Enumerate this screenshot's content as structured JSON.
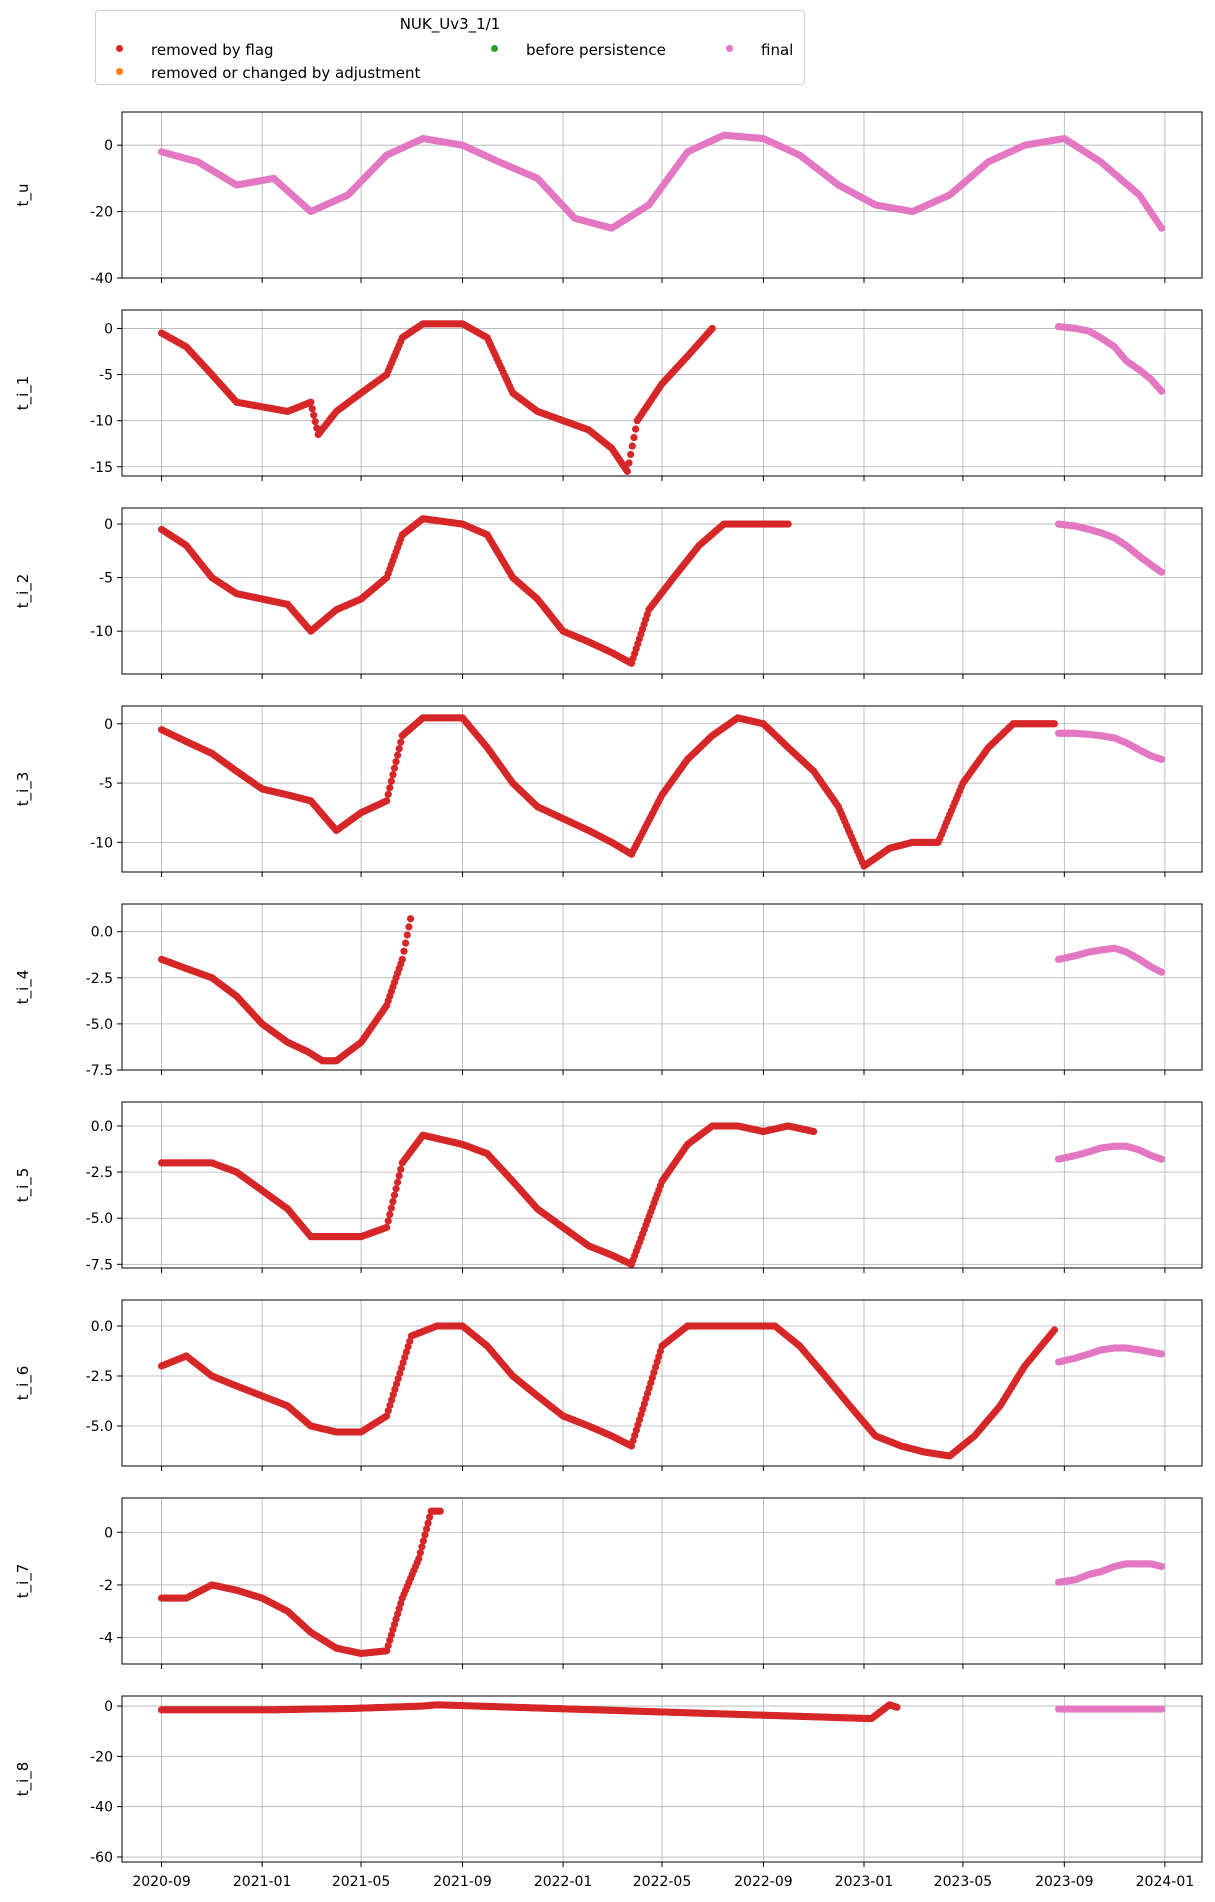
{
  "legend": {
    "title": "NUK_Uv3_1/1",
    "items": [
      {
        "label": "removed by flag",
        "color": "#d62728"
      },
      {
        "label": "removed or changed by adjustment",
        "color": "#ff7f0e"
      },
      {
        "label": "before persistence",
        "color": "#2ca02c"
      },
      {
        "label": "final",
        "color": "#e377c2"
      }
    ]
  },
  "chart_data": [
    {
      "type": "scatter",
      "ylabel": "t_u",
      "ylim": [
        -40,
        10
      ],
      "yticks": [
        0,
        -20,
        -40
      ],
      "grid": true,
      "series": [
        {
          "name": "final",
          "color": "#e377c2",
          "x": [
            "2020-09-01",
            "2020-10-15",
            "2020-12-01",
            "2021-01-15",
            "2021-03-01",
            "2021-04-15",
            "2021-06-01",
            "2021-07-15",
            "2021-09-01",
            "2021-10-15",
            "2021-12-01",
            "2022-01-15",
            "2022-03-01",
            "2022-04-15",
            "2022-06-01",
            "2022-07-15",
            "2022-09-01",
            "2022-10-15",
            "2022-12-01",
            "2023-01-15",
            "2023-03-01",
            "2023-04-15",
            "2023-06-01",
            "2023-07-15",
            "2023-09-01",
            "2023-10-15",
            "2023-12-01",
            "2023-12-28"
          ],
          "y": [
            -2,
            -5,
            -12,
            -10,
            -20,
            -15,
            -3,
            2,
            0,
            -5,
            -10,
            -22,
            -25,
            -18,
            -2,
            3,
            2,
            -3,
            -12,
            -18,
            -20,
            -15,
            -5,
            0,
            2,
            -5,
            -15,
            -25
          ]
        }
      ]
    },
    {
      "type": "scatter",
      "ylabel": "t_i_1",
      "ylim": [
        -16,
        2
      ],
      "yticks": [
        0,
        -5,
        -10,
        -15
      ],
      "grid": true,
      "series": [
        {
          "name": "removed by flag",
          "color": "#d62728",
          "x": [
            "2020-09-01",
            "2020-10-01",
            "2020-11-01",
            "2020-12-01",
            "2021-01-01",
            "2021-02-01",
            "2021-03-01",
            "2021-03-10",
            "2021-04-01",
            "2021-05-01",
            "2021-06-01",
            "2021-06-20",
            "2021-07-15",
            "2021-09-01",
            "2021-10-01",
            "2021-11-01",
            "2021-12-01",
            "2022-01-01",
            "2022-02-01",
            "2022-03-01",
            "2022-03-20",
            "2022-04-01",
            "2022-05-01",
            "2022-06-01",
            "2022-07-01"
          ],
          "y": [
            -0.5,
            -2,
            -5,
            -8,
            -8.5,
            -9,
            -8,
            -11.5,
            -9,
            -7,
            -5,
            -1,
            0.5,
            0.5,
            -1,
            -7,
            -9,
            -10,
            -11,
            -13,
            -15.5,
            -10,
            -6,
            -3,
            0
          ]
        },
        {
          "name": "final",
          "color": "#e377c2",
          "x": [
            "2023-08-25",
            "2023-09-15",
            "2023-10-01",
            "2023-10-15",
            "2023-11-01",
            "2023-11-15",
            "2023-12-01",
            "2023-12-15",
            "2023-12-28"
          ],
          "y": [
            0.2,
            0,
            -0.3,
            -1,
            -2,
            -3.5,
            -4.5,
            -5.5,
            -6.8
          ]
        }
      ]
    },
    {
      "type": "scatter",
      "ylabel": "t_i_2",
      "ylim": [
        -14,
        1.5
      ],
      "yticks": [
        0,
        -5,
        -10
      ],
      "grid": true,
      "series": [
        {
          "name": "removed by flag",
          "color": "#d62728",
          "x": [
            "2020-09-01",
            "2020-10-01",
            "2020-11-01",
            "2020-12-01",
            "2021-01-01",
            "2021-02-01",
            "2021-03-01",
            "2021-04-01",
            "2021-05-01",
            "2021-06-01",
            "2021-06-20",
            "2021-07-15",
            "2021-09-01",
            "2021-10-01",
            "2021-11-01",
            "2021-12-01",
            "2022-01-01",
            "2022-02-01",
            "2022-03-01",
            "2022-03-25",
            "2022-04-15",
            "2022-05-15",
            "2022-06-15",
            "2022-07-15",
            "2022-08-15",
            "2022-10-01"
          ],
          "y": [
            -0.5,
            -2,
            -5,
            -6.5,
            -7,
            -7.5,
            -10,
            -8,
            -7,
            -5,
            -1,
            0.5,
            0,
            -1,
            -5,
            -7,
            -10,
            -11,
            -12,
            -13,
            -8,
            -5,
            -2,
            0,
            0,
            0
          ]
        },
        {
          "name": "final",
          "color": "#e377c2",
          "x": [
            "2023-08-25",
            "2023-09-15",
            "2023-10-01",
            "2023-10-15",
            "2023-11-01",
            "2023-11-15",
            "2023-12-01",
            "2023-12-15",
            "2023-12-28"
          ],
          "y": [
            0,
            -0.2,
            -0.5,
            -0.8,
            -1.3,
            -2,
            -3,
            -3.8,
            -4.5
          ]
        }
      ]
    },
    {
      "type": "scatter",
      "ylabel": "t_i_3",
      "ylim": [
        -12.5,
        1.5
      ],
      "yticks": [
        0,
        -5,
        -10
      ],
      "grid": true,
      "series": [
        {
          "name": "removed by flag",
          "color": "#d62728",
          "x": [
            "2020-09-01",
            "2020-10-01",
            "2020-11-01",
            "2020-12-01",
            "2021-01-01",
            "2021-02-01",
            "2021-03-01",
            "2021-04-01",
            "2021-05-01",
            "2021-06-01",
            "2021-06-20",
            "2021-07-15",
            "2021-09-01",
            "2021-10-01",
            "2021-11-01",
            "2021-12-01",
            "2022-01-01",
            "2022-02-01",
            "2022-03-01",
            "2022-03-25",
            "2022-05-01",
            "2022-06-01",
            "2022-07-01",
            "2022-08-01",
            "2022-09-01",
            "2022-10-01",
            "2022-11-01",
            "2022-12-01",
            "2023-01-01",
            "2023-02-01",
            "2023-03-01",
            "2023-04-01",
            "2023-05-01",
            "2023-06-01",
            "2023-07-01",
            "2023-08-20"
          ],
          "y": [
            -0.5,
            -1.5,
            -2.5,
            -4,
            -5.5,
            -6,
            -6.5,
            -9,
            -7.5,
            -6.5,
            -1,
            0.5,
            0.5,
            -2,
            -5,
            -7,
            -8,
            -9,
            -10,
            -11,
            -6,
            -3,
            -1,
            0.5,
            0,
            -2,
            -4,
            -7,
            -12,
            -10.5,
            -10,
            -10,
            -5,
            -2,
            0,
            0
          ]
        },
        {
          "name": "final",
          "color": "#e377c2",
          "x": [
            "2023-08-25",
            "2023-09-15",
            "2023-10-01",
            "2023-10-15",
            "2023-11-01",
            "2023-11-15",
            "2023-12-01",
            "2023-12-15",
            "2023-12-28"
          ],
          "y": [
            -0.8,
            -0.8,
            -0.9,
            -1,
            -1.2,
            -1.6,
            -2.2,
            -2.7,
            -3
          ]
        }
      ]
    },
    {
      "type": "scatter",
      "ylabel": "t_i_4",
      "ylim": [
        -7.5,
        1.5
      ],
      "yticks": [
        0.0,
        -2.5,
        -5.0,
        -7.5
      ],
      "grid": true,
      "series": [
        {
          "name": "removed by flag",
          "color": "#d62728",
          "x": [
            "2020-09-01",
            "2020-10-01",
            "2020-11-01",
            "2020-12-01",
            "2021-01-01",
            "2021-02-01",
            "2021-02-25",
            "2021-03-15",
            "2021-04-01",
            "2021-05-01",
            "2021-06-01",
            "2021-06-20",
            "2021-06-30"
          ],
          "y": [
            -1.5,
            -2,
            -2.5,
            -3.5,
            -5,
            -6,
            -6.5,
            -7,
            -7,
            -6,
            -4,
            -1.5,
            0.7
          ]
        },
        {
          "name": "final",
          "color": "#e377c2",
          "x": [
            "2023-08-25",
            "2023-09-15",
            "2023-10-01",
            "2023-10-15",
            "2023-11-01",
            "2023-11-15",
            "2023-12-01",
            "2023-12-15",
            "2023-12-28"
          ],
          "y": [
            -1.5,
            -1.3,
            -1.1,
            -1,
            -0.9,
            -1.1,
            -1.5,
            -1.9,
            -2.2
          ]
        }
      ]
    },
    {
      "type": "scatter",
      "ylabel": "t_i_5",
      "ylim": [
        -7.7,
        1.3
      ],
      "yticks": [
        0.0,
        -2.5,
        -5.0,
        -7.5
      ],
      "grid": true,
      "series": [
        {
          "name": "removed by flag",
          "color": "#d62728",
          "x": [
            "2020-09-01",
            "2020-10-01",
            "2020-11-01",
            "2020-12-01",
            "2021-01-01",
            "2021-02-01",
            "2021-03-01",
            "2021-04-01",
            "2021-05-01",
            "2021-06-01",
            "2021-06-20",
            "2021-07-15",
            "2021-09-01",
            "2021-10-01",
            "2021-11-01",
            "2021-12-01",
            "2022-01-01",
            "2022-02-01",
            "2022-03-01",
            "2022-03-25",
            "2022-05-01",
            "2022-06-01",
            "2022-07-01",
            "2022-08-01",
            "2022-09-01",
            "2022-10-01",
            "2022-11-01"
          ],
          "y": [
            -2,
            -2,
            -2,
            -2.5,
            -3.5,
            -4.5,
            -6,
            -6,
            -6,
            -5.5,
            -2,
            -0.5,
            -1,
            -1.5,
            -3,
            -4.5,
            -5.5,
            -6.5,
            -7,
            -7.5,
            -3,
            -1,
            0,
            0,
            -0.3,
            0,
            -0.3
          ]
        },
        {
          "name": "final",
          "color": "#e377c2",
          "x": [
            "2023-08-25",
            "2023-09-15",
            "2023-10-01",
            "2023-10-15",
            "2023-11-01",
            "2023-11-15",
            "2023-12-01",
            "2023-12-15",
            "2023-12-28"
          ],
          "y": [
            -1.8,
            -1.6,
            -1.4,
            -1.2,
            -1.1,
            -1.1,
            -1.3,
            -1.6,
            -1.8
          ]
        }
      ]
    },
    {
      "type": "scatter",
      "ylabel": "t_i_6",
      "ylim": [
        -7,
        1.3
      ],
      "yticks": [
        0.0,
        -2.5,
        -5.0
      ],
      "grid": true,
      "series": [
        {
          "name": "removed by flag",
          "color": "#d62728",
          "x": [
            "2020-09-01",
            "2020-10-01",
            "2020-11-01",
            "2020-12-01",
            "2021-01-01",
            "2021-02-01",
            "2021-03-01",
            "2021-04-01",
            "2021-05-01",
            "2021-06-01",
            "2021-07-01",
            "2021-08-01",
            "2021-09-01",
            "2021-10-01",
            "2021-11-01",
            "2021-12-01",
            "2022-01-01",
            "2022-02-01",
            "2022-03-01",
            "2022-03-25",
            "2022-05-01",
            "2022-06-01",
            "2022-07-01",
            "2022-09-15",
            "2022-10-15",
            "2022-11-15",
            "2022-12-15",
            "2023-01-15",
            "2023-02-15",
            "2023-03-15",
            "2023-04-15",
            "2023-05-15",
            "2023-06-15",
            "2023-07-15",
            "2023-08-20"
          ],
          "y": [
            -2,
            -1.5,
            -2.5,
            -3,
            -3.5,
            -4,
            -5,
            -5.3,
            -5.3,
            -4.5,
            -0.5,
            0,
            0,
            -1,
            -2.5,
            -3.5,
            -4.5,
            -5,
            -5.5,
            -6,
            -1,
            0,
            0,
            0,
            -1,
            -2.5,
            -4,
            -5.5,
            -6,
            -6.3,
            -6.5,
            -5.5,
            -4,
            -2,
            -0.2
          ]
        },
        {
          "name": "final",
          "color": "#e377c2",
          "x": [
            "2023-08-25",
            "2023-09-15",
            "2023-10-01",
            "2023-10-15",
            "2023-11-01",
            "2023-11-15",
            "2023-12-01",
            "2023-12-15",
            "2023-12-28"
          ],
          "y": [
            -1.8,
            -1.6,
            -1.4,
            -1.2,
            -1.1,
            -1.1,
            -1.2,
            -1.3,
            -1.4
          ]
        }
      ]
    },
    {
      "type": "scatter",
      "ylabel": "t_i_7",
      "ylim": [
        -5,
        1.3
      ],
      "yticks": [
        0,
        -2,
        -4
      ],
      "grid": true,
      "series": [
        {
          "name": "removed by flag",
          "color": "#d62728",
          "x": [
            "2020-09-01",
            "2020-10-01",
            "2020-11-01",
            "2020-12-01",
            "2021-01-01",
            "2021-02-01",
            "2021-03-01",
            "2021-04-01",
            "2021-05-01",
            "2021-06-01",
            "2021-06-20",
            "2021-07-10",
            "2021-07-25",
            "2021-08-05"
          ],
          "y": [
            -2.5,
            -2.5,
            -2,
            -2.2,
            -2.5,
            -3,
            -3.8,
            -4.4,
            -4.6,
            -4.5,
            -2.5,
            -1,
            0.8,
            0.8
          ]
        },
        {
          "name": "final",
          "color": "#e377c2",
          "x": [
            "2023-08-25",
            "2023-09-15",
            "2023-10-01",
            "2023-10-15",
            "2023-11-01",
            "2023-11-15",
            "2023-12-01",
            "2023-12-15",
            "2023-12-28"
          ],
          "y": [
            -1.9,
            -1.8,
            -1.6,
            -1.5,
            -1.3,
            -1.2,
            -1.2,
            -1.2,
            -1.3
          ]
        }
      ]
    },
    {
      "type": "scatter",
      "ylabel": "t_i_8",
      "ylim": [
        -62,
        4
      ],
      "yticks": [
        0,
        -20,
        -40,
        -60
      ],
      "grid": true,
      "series": [
        {
          "name": "removed by flag",
          "color": "#d62728",
          "x": [
            "2020-09-01",
            "2020-10-15",
            "2020-12-01",
            "2021-01-15",
            "2021-03-01",
            "2021-04-15",
            "2021-06-01",
            "2021-07-15",
            "2021-08-01",
            "2023-01-10",
            "2023-02-01",
            "2023-02-10"
          ],
          "y": [
            -1.5,
            -1.5,
            -1.5,
            -1.5,
            -1.2,
            -1,
            -0.5,
            0,
            0.5,
            -5,
            0.5,
            -0.5
          ]
        },
        {
          "name": "final",
          "color": "#e377c2",
          "x": [
            "2023-08-25",
            "2023-09-15",
            "2023-10-01",
            "2023-10-15",
            "2023-11-01",
            "2023-11-15",
            "2023-12-01",
            "2023-12-15",
            "2023-12-28"
          ],
          "y": [
            -1.2,
            -1.2,
            -1.2,
            -1.2,
            -1.2,
            -1.2,
            -1.2,
            -1.2,
            -1.2
          ]
        }
      ]
    }
  ],
  "x_axis": {
    "range": [
      "2020-07-15",
      "2024-02-15"
    ],
    "ticks": [
      "2020-09",
      "2021-01",
      "2021-05",
      "2021-09",
      "2022-01",
      "2022-05",
      "2022-09",
      "2023-01",
      "2023-05",
      "2023-09",
      "2024-01"
    ]
  }
}
